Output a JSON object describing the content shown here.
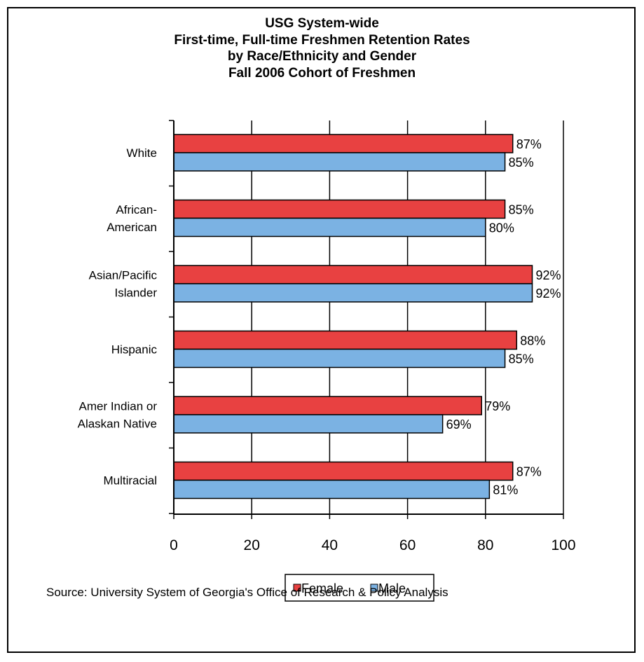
{
  "title_lines": [
    "USG  System-wide",
    "First-time, Full-time Freshmen Retention Rates",
    "by Race/Ethnicity and Gender",
    "Fall 2006 Cohort of Freshmen"
  ],
  "source": "Source: University System of Georgia's Office of Research & Policy Analysis",
  "colors": {
    "female": "#e84141",
    "male": "#7bb2e3",
    "axis": "#000000"
  },
  "chart_data": {
    "type": "bar",
    "orientation": "horizontal",
    "categories": [
      [
        "White"
      ],
      [
        "African-",
        "American"
      ],
      [
        "Asian/Pacific",
        "Islander"
      ],
      [
        "Hispanic"
      ],
      [
        "Amer Indian or",
        "Alaskan Native"
      ],
      [
        "Multiracial"
      ]
    ],
    "series": [
      {
        "name": "Female",
        "values": [
          87,
          85,
          92,
          88,
          79,
          87
        ],
        "labels": [
          "87%",
          "85%",
          "92%",
          "88%",
          "79%",
          "87%"
        ]
      },
      {
        "name": "Male",
        "values": [
          85,
          80,
          92,
          85,
          69,
          81
        ],
        "labels": [
          "85%",
          "80%",
          "92%",
          "85%",
          "69%",
          "81%"
        ]
      }
    ],
    "xlim": [
      0,
      100
    ],
    "xticks": [
      0,
      20,
      40,
      60,
      80,
      100
    ],
    "grid": "vertical",
    "legend": "bottom-center"
  }
}
